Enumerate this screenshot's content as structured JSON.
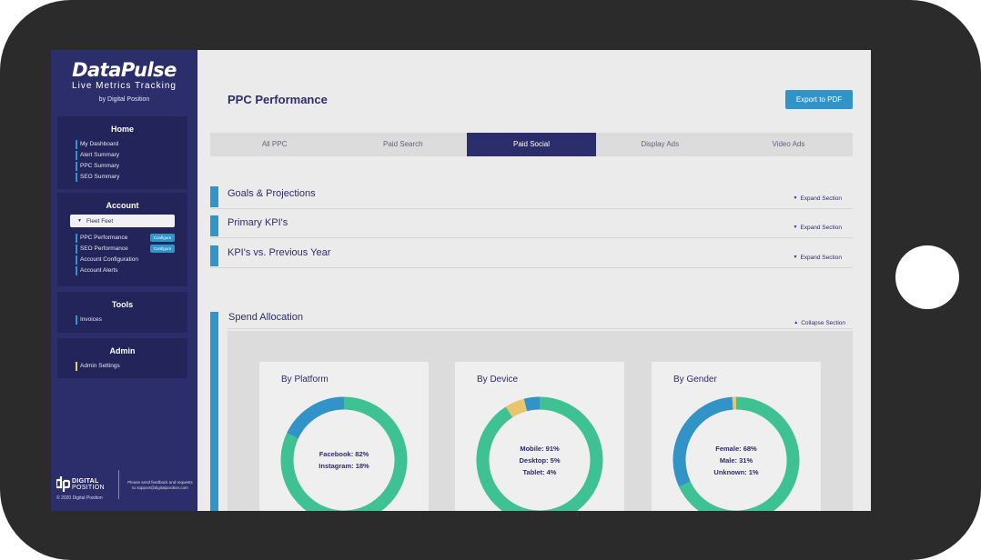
{
  "sidebar": {
    "brand": "DataPulse",
    "tagline": "Live Metrics Tracking",
    "by": "by Digital Position",
    "home": {
      "title": "Home",
      "items": [
        "My Dashboard",
        "Alert Summary",
        "PPC Summary",
        "SEO Summary"
      ]
    },
    "account": {
      "title": "Account",
      "selected": "Fleet Feet",
      "items": [
        "PPC Performance",
        "SEO Performance",
        "Account Configuration",
        "Account Alerts"
      ],
      "configure_label": "Configure"
    },
    "tools": {
      "title": "Tools",
      "items": [
        "Invoices"
      ]
    },
    "admin": {
      "title": "Admin",
      "items": [
        "Admin Settings"
      ]
    },
    "footer": {
      "brand_line1": "DIGITAL",
      "brand_line2": "POSITION",
      "copyright": "© 2020 Digital Position",
      "note": "Please send feedback and requests to support@digitalposition.com"
    }
  },
  "main": {
    "title": "PPC Performance",
    "export_label": "Export to PDF",
    "tabs": [
      {
        "label": "All PPC",
        "active": false
      },
      {
        "label": "Paid Search",
        "active": false
      },
      {
        "label": "Paid Social",
        "active": true
      },
      {
        "label": "Display Ads",
        "active": false
      },
      {
        "label": "Video Ads",
        "active": false
      }
    ],
    "sections": [
      {
        "title": "Goals & Projections",
        "toggle": "Expand Section"
      },
      {
        "title": "Primary KPI's",
        "toggle": "Expand Section"
      },
      {
        "title": "KPI's vs. Previous Year",
        "toggle": "Expand Section"
      }
    ],
    "spend": {
      "title": "Spend Allocation",
      "toggle": "Collapse Section",
      "cards": [
        {
          "title": "By Platform",
          "labels": [
            "Facebook: 82%",
            "Instagram: 18%"
          ]
        },
        {
          "title": "By Device",
          "labels": [
            "Mobile: 91%",
            "Desktop: 5%",
            "Tablet: 4%"
          ]
        },
        {
          "title": "By Gender",
          "labels": [
            "Female: 68%",
            "Male: 31%",
            "Unknown: 1%"
          ]
        }
      ]
    }
  },
  "chart_data": [
    {
      "type": "pie",
      "title": "By Platform",
      "categories": [
        "Facebook",
        "Instagram"
      ],
      "values": [
        82,
        18
      ],
      "colors": [
        "#3ec193",
        "#3293c7"
      ]
    },
    {
      "type": "pie",
      "title": "By Device",
      "categories": [
        "Mobile",
        "Desktop",
        "Tablet"
      ],
      "values": [
        91,
        5,
        4
      ],
      "colors": [
        "#3ec193",
        "#e8c66d",
        "#3293c7"
      ]
    },
    {
      "type": "pie",
      "title": "By Gender",
      "categories": [
        "Female",
        "Male",
        "Unknown"
      ],
      "values": [
        68,
        31,
        1
      ],
      "colors": [
        "#3ec193",
        "#3293c7",
        "#e8c66d"
      ]
    }
  ],
  "colors": {
    "sidebar": "#2c2d6b",
    "panel": "#23245a",
    "accent": "#2f96c9",
    "green": "#3ec193",
    "yellow": "#e8c66d"
  }
}
